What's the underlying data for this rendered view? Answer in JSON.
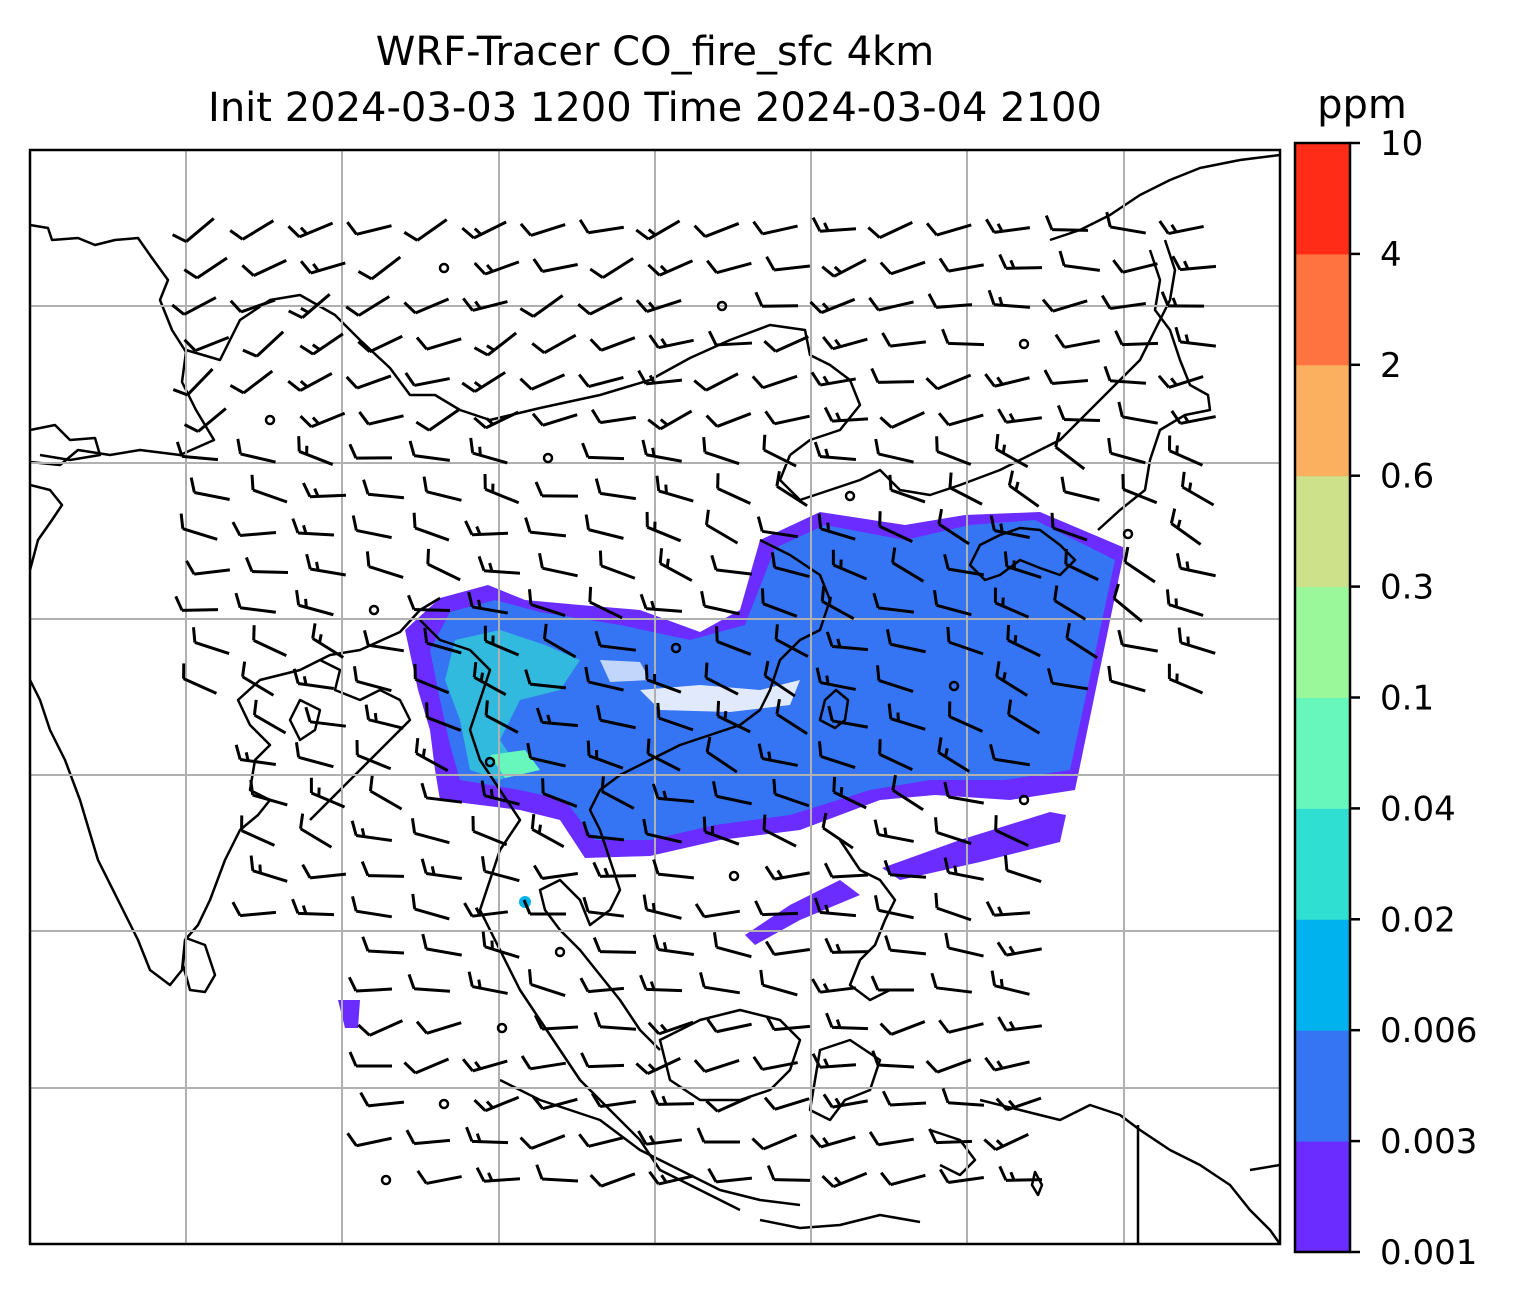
{
  "title": {
    "line1": "WRF-Tracer CO_fire_sfc 4km",
    "line2": "Init 2024-03-03 1200 Time 2024-03-04 2100"
  },
  "colorbar": {
    "unit": "ppm",
    "levels": [
      "0.001",
      "0.003",
      "0.006",
      "0.02",
      "0.04",
      "0.1",
      "0.3",
      "0.6",
      "2",
      "4",
      "10"
    ],
    "colors": [
      "#6a2cff",
      "#3574f2",
      "#00b2ee",
      "#2fdfd2",
      "#67f7bd",
      "#9af79a",
      "#cde18a",
      "#fbb060",
      "#ff7341",
      "#ff2d18"
    ]
  },
  "map": {
    "gridlines": true,
    "coastline_color": "#000000",
    "gridline_color": "#b0b0b0",
    "wind_barbs": true
  }
}
